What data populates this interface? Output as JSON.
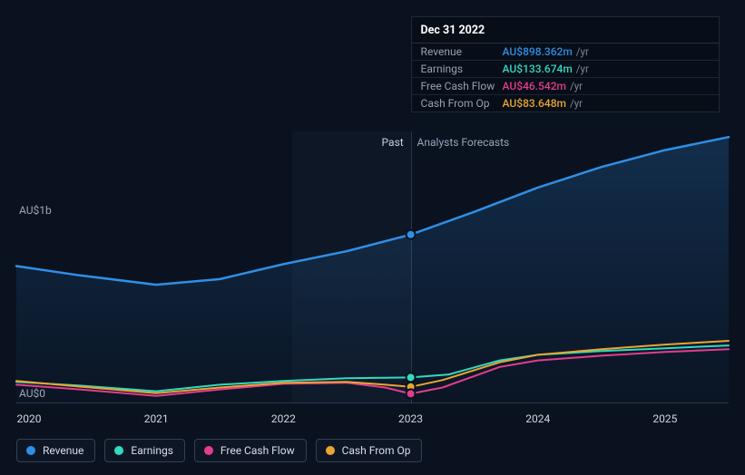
{
  "chart": {
    "type": "line",
    "x_years": [
      2020,
      2021,
      2022,
      2023,
      2024,
      2025
    ],
    "xlim": [
      2019.9,
      2025.5
    ],
    "ylim_m": [
      0,
      1450
    ],
    "y_ticks": [
      {
        "value_m": 0,
        "label": "AU$0"
      },
      {
        "value_m": 1000,
        "label": "AU$1b"
      }
    ],
    "background_color": "#0a1220",
    "grid_color": "rgba(110,120,140,0.35)",
    "past_divider_year": 2023,
    "past_shade_start_year": 2022.07,
    "past_label": "Past",
    "forecast_label": "Analysts Forecasts",
    "label_fontsize": 12,
    "series": [
      {
        "key": "revenue",
        "label": "Revenue",
        "color": "#2f8fe6",
        "fill": true,
        "fill_opacity": 0.1,
        "line_width": 2.5,
        "points": [
          {
            "x": 2019.9,
            "y_m": 730
          },
          {
            "x": 2020.4,
            "y_m": 680
          },
          {
            "x": 2021.0,
            "y_m": 630
          },
          {
            "x": 2021.5,
            "y_m": 660
          },
          {
            "x": 2022.0,
            "y_m": 740
          },
          {
            "x": 2022.5,
            "y_m": 810
          },
          {
            "x": 2023.0,
            "y_m": 898.362
          },
          {
            "x": 2023.5,
            "y_m": 1020
          },
          {
            "x": 2024.0,
            "y_m": 1150
          },
          {
            "x": 2024.5,
            "y_m": 1260
          },
          {
            "x": 2025.0,
            "y_m": 1350
          },
          {
            "x": 2025.5,
            "y_m": 1420
          }
        ]
      },
      {
        "key": "earnings",
        "label": "Earnings",
        "color": "#33d9c0",
        "fill": false,
        "line_width": 2,
        "points": [
          {
            "x": 2019.9,
            "y_m": 110
          },
          {
            "x": 2020.4,
            "y_m": 90
          },
          {
            "x": 2021.0,
            "y_m": 60
          },
          {
            "x": 2021.5,
            "y_m": 95
          },
          {
            "x": 2022.0,
            "y_m": 115
          },
          {
            "x": 2022.5,
            "y_m": 130
          },
          {
            "x": 2023.0,
            "y_m": 133.674
          },
          {
            "x": 2023.3,
            "y_m": 150
          },
          {
            "x": 2023.7,
            "y_m": 225
          },
          {
            "x": 2024.0,
            "y_m": 255
          },
          {
            "x": 2024.5,
            "y_m": 275
          },
          {
            "x": 2025.0,
            "y_m": 290
          },
          {
            "x": 2025.5,
            "y_m": 305
          }
        ]
      },
      {
        "key": "fcf",
        "label": "Free Cash Flow",
        "color": "#e23d8f",
        "fill": false,
        "line_width": 2,
        "points": [
          {
            "x": 2019.9,
            "y_m": 95
          },
          {
            "x": 2020.4,
            "y_m": 70
          },
          {
            "x": 2021.0,
            "y_m": 35
          },
          {
            "x": 2021.5,
            "y_m": 70
          },
          {
            "x": 2022.0,
            "y_m": 100
          },
          {
            "x": 2022.5,
            "y_m": 105
          },
          {
            "x": 2022.8,
            "y_m": 80
          },
          {
            "x": 2023.0,
            "y_m": 46.542
          },
          {
            "x": 2023.25,
            "y_m": 80
          },
          {
            "x": 2023.7,
            "y_m": 190
          },
          {
            "x": 2024.0,
            "y_m": 225
          },
          {
            "x": 2024.5,
            "y_m": 250
          },
          {
            "x": 2025.0,
            "y_m": 270
          },
          {
            "x": 2025.5,
            "y_m": 285
          }
        ]
      },
      {
        "key": "cfo",
        "label": "Cash From Op",
        "color": "#e9a531",
        "fill": false,
        "line_width": 2,
        "points": [
          {
            "x": 2019.9,
            "y_m": 115
          },
          {
            "x": 2020.4,
            "y_m": 85
          },
          {
            "x": 2021.0,
            "y_m": 50
          },
          {
            "x": 2021.5,
            "y_m": 80
          },
          {
            "x": 2022.0,
            "y_m": 105
          },
          {
            "x": 2022.5,
            "y_m": 110
          },
          {
            "x": 2022.8,
            "y_m": 95
          },
          {
            "x": 2023.0,
            "y_m": 83.648
          },
          {
            "x": 2023.25,
            "y_m": 120
          },
          {
            "x": 2023.7,
            "y_m": 215
          },
          {
            "x": 2024.0,
            "y_m": 255
          },
          {
            "x": 2024.5,
            "y_m": 285
          },
          {
            "x": 2025.0,
            "y_m": 310
          },
          {
            "x": 2025.5,
            "y_m": 330
          }
        ]
      }
    ],
    "hover": {
      "x": 2023.0,
      "dots": [
        {
          "series": "revenue",
          "y_m": 898.362
        },
        {
          "series": "earnings",
          "y_m": 133.674
        },
        {
          "series": "cfo",
          "y_m": 83.648
        },
        {
          "series": "fcf",
          "y_m": 46.542
        }
      ]
    }
  },
  "tooltip": {
    "date": "Dec 31 2022",
    "unit": "/yr",
    "rows": [
      {
        "label": "Revenue",
        "value": "AU$898.362m",
        "color": "#2f8fe6"
      },
      {
        "label": "Earnings",
        "value": "AU$133.674m",
        "color": "#33d9c0"
      },
      {
        "label": "Free Cash Flow",
        "value": "AU$46.542m",
        "color": "#e23d8f"
      },
      {
        "label": "Cash From Op",
        "value": "AU$83.648m",
        "color": "#e9a531"
      }
    ]
  },
  "legend": [
    {
      "label": "Revenue",
      "color": "#2f8fe6"
    },
    {
      "label": "Earnings",
      "color": "#33d9c0"
    },
    {
      "label": "Free Cash Flow",
      "color": "#e23d8f"
    },
    {
      "label": "Cash From Op",
      "color": "#e9a531"
    }
  ]
}
